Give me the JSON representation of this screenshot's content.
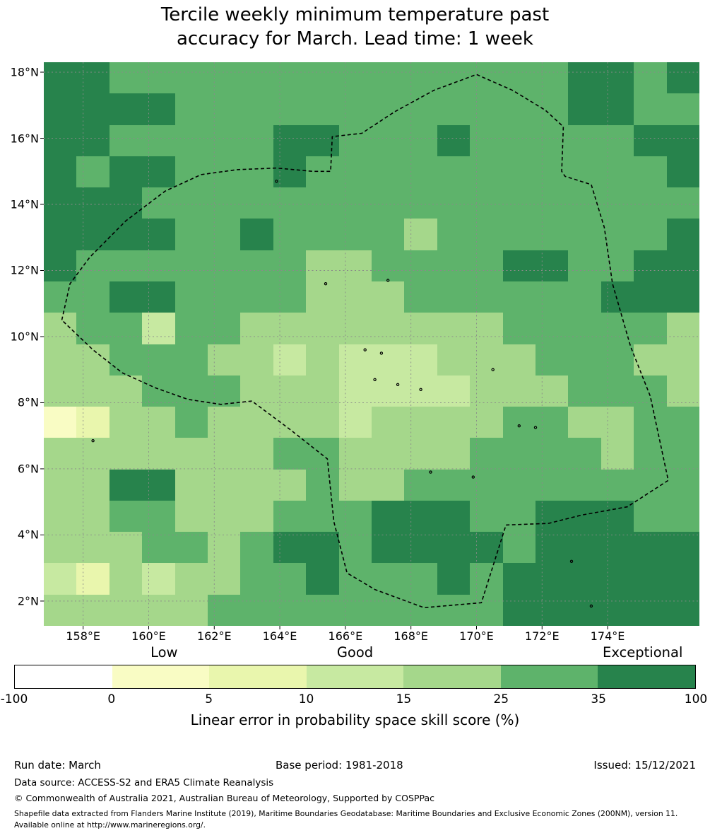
{
  "title": {
    "line1": "Tercile weekly minimum temperature past",
    "line2": "accuracy for March. Lead time: 1 week"
  },
  "chart_data": {
    "type": "heatmap",
    "title": "Tercile weekly minimum temperature past accuracy for March. Lead time: 1 week",
    "x_ticks": [
      "158°E",
      "160°E",
      "162°E",
      "164°E",
      "166°E",
      "168°E",
      "170°E",
      "172°E",
      "174°E"
    ],
    "lon_ticks": [
      158,
      160,
      162,
      164,
      166,
      168,
      170,
      172,
      174
    ],
    "y_ticks": [
      "18°N",
      "16°N",
      "14°N",
      "12°N",
      "10°N",
      "8°N",
      "6°N",
      "4°N",
      "2°N"
    ],
    "lat_ticks": [
      18,
      16,
      14,
      12,
      10,
      8,
      6,
      4,
      2
    ],
    "extent": {
      "lon_min": 156.8,
      "lon_max": 176.8,
      "lat_min": 1.25,
      "lat_max": 18.3
    },
    "grid_on": true,
    "grid": [
      [
        6,
        6,
        5,
        5,
        5,
        5,
        5,
        5,
        5,
        5,
        5,
        5,
        5,
        5,
        5,
        5,
        6,
        6,
        5,
        6
      ],
      [
        6,
        6,
        6,
        6,
        5,
        5,
        5,
        5,
        5,
        5,
        5,
        5,
        5,
        5,
        5,
        5,
        6,
        6,
        5,
        5
      ],
      [
        6,
        6,
        5,
        5,
        5,
        5,
        5,
        6,
        6,
        5,
        5,
        5,
        6,
        5,
        5,
        5,
        5,
        5,
        6,
        6
      ],
      [
        6,
        5,
        6,
        6,
        5,
        5,
        5,
        6,
        5,
        5,
        5,
        5,
        5,
        5,
        5,
        5,
        5,
        5,
        5,
        6
      ],
      [
        6,
        6,
        6,
        5,
        5,
        5,
        5,
        5,
        5,
        5,
        5,
        5,
        5,
        5,
        5,
        5,
        5,
        5,
        5,
        5
      ],
      [
        6,
        6,
        6,
        6,
        5,
        5,
        6,
        5,
        5,
        5,
        5,
        4,
        5,
        5,
        5,
        5,
        5,
        5,
        5,
        6
      ],
      [
        6,
        5,
        5,
        5,
        5,
        5,
        5,
        5,
        4,
        4,
        5,
        5,
        5,
        5,
        6,
        6,
        5,
        5,
        6,
        6
      ],
      [
        5,
        5,
        6,
        6,
        5,
        5,
        5,
        5,
        4,
        4,
        4,
        5,
        5,
        5,
        5,
        5,
        5,
        6,
        6,
        6
      ],
      [
        4,
        5,
        5,
        3,
        5,
        5,
        4,
        4,
        4,
        4,
        4,
        4,
        4,
        4,
        5,
        5,
        5,
        5,
        5,
        4
      ],
      [
        4,
        4,
        5,
        5,
        5,
        4,
        4,
        3,
        4,
        3,
        3,
        3,
        4,
        4,
        4,
        5,
        5,
        5,
        4,
        4
      ],
      [
        4,
        4,
        4,
        5,
        5,
        5,
        4,
        4,
        4,
        3,
        3,
        3,
        3,
        4,
        4,
        4,
        5,
        5,
        5,
        4
      ],
      [
        1,
        2,
        4,
        4,
        5,
        4,
        4,
        4,
        4,
        3,
        4,
        4,
        4,
        4,
        5,
        5,
        4,
        4,
        5,
        5
      ],
      [
        4,
        4,
        4,
        4,
        4,
        4,
        4,
        5,
        5,
        4,
        4,
        4,
        4,
        5,
        5,
        5,
        5,
        4,
        5,
        5
      ],
      [
        4,
        4,
        6,
        6,
        4,
        4,
        4,
        4,
        5,
        4,
        4,
        5,
        5,
        5,
        5,
        5,
        5,
        5,
        5,
        5
      ],
      [
        4,
        4,
        5,
        5,
        4,
        4,
        4,
        5,
        5,
        5,
        6,
        6,
        6,
        5,
        5,
        6,
        6,
        6,
        5,
        5
      ],
      [
        4,
        4,
        4,
        5,
        5,
        4,
        5,
        6,
        6,
        5,
        6,
        6,
        6,
        6,
        5,
        6,
        6,
        6,
        6,
        6
      ],
      [
        3,
        2,
        4,
        3,
        4,
        4,
        5,
        5,
        6,
        5,
        5,
        5,
        6,
        5,
        6,
        6,
        6,
        6,
        6,
        6
      ],
      [
        4,
        4,
        4,
        4,
        4,
        5,
        5,
        5,
        5,
        5,
        5,
        5,
        5,
        5,
        6,
        6,
        6,
        6,
        6,
        6
      ]
    ],
    "boundary": [
      [
        157.35,
        10.5
      ],
      [
        157.6,
        11.6
      ],
      [
        158.2,
        12.4
      ],
      [
        159.3,
        13.5
      ],
      [
        160.5,
        14.4
      ],
      [
        161.6,
        14.9
      ],
      [
        162.7,
        15.05
      ],
      [
        163.9,
        15.1
      ],
      [
        165.0,
        15.0
      ],
      [
        165.55,
        15.0
      ],
      [
        165.6,
        16.05
      ],
      [
        166.5,
        16.15
      ],
      [
        167.5,
        16.8
      ],
      [
        168.7,
        17.45
      ],
      [
        170.0,
        17.93
      ],
      [
        171.1,
        17.45
      ],
      [
        172.1,
        16.85
      ],
      [
        172.65,
        16.35
      ],
      [
        172.6,
        15.0
      ],
      [
        172.7,
        14.85
      ],
      [
        173.5,
        14.6
      ],
      [
        173.9,
        13.3
      ],
      [
        174.15,
        11.6
      ],
      [
        174.7,
        9.7
      ],
      [
        175.3,
        8.2
      ],
      [
        175.85,
        5.65
      ],
      [
        174.6,
        4.85
      ],
      [
        173.2,
        4.6
      ],
      [
        172.2,
        4.35
      ],
      [
        170.9,
        4.3
      ],
      [
        170.15,
        1.95
      ],
      [
        168.4,
        1.8
      ],
      [
        166.9,
        2.35
      ],
      [
        166.05,
        2.85
      ],
      [
        165.65,
        4.4
      ],
      [
        165.45,
        6.3
      ],
      [
        164.3,
        7.2
      ],
      [
        163.15,
        8.05
      ],
      [
        162.2,
        7.95
      ],
      [
        161.2,
        8.1
      ],
      [
        160.2,
        8.45
      ],
      [
        159.2,
        8.9
      ],
      [
        158.3,
        9.6
      ],
      [
        157.35,
        10.5
      ]
    ],
    "islands": [
      [
        158.3,
        6.85
      ],
      [
        166.9,
        8.7
      ],
      [
        167.6,
        8.55
      ],
      [
        168.3,
        8.4
      ],
      [
        166.6,
        9.6
      ],
      [
        167.1,
        9.5
      ],
      [
        170.5,
        9.0
      ],
      [
        171.3,
        7.3
      ],
      [
        171.8,
        7.25
      ],
      [
        168.6,
        5.9
      ],
      [
        169.9,
        5.75
      ],
      [
        172.9,
        3.2
      ],
      [
        173.5,
        1.85
      ],
      [
        163.9,
        14.7
      ],
      [
        167.3,
        11.7
      ],
      [
        165.4,
        11.6
      ]
    ],
    "colorbar": {
      "bounds": [
        "-100",
        "0",
        "5",
        "10",
        "15",
        "25",
        "35",
        "100"
      ],
      "colors": [
        "#ffffff",
        "#f9fcc4",
        "#e9f6ad",
        "#c7e9a1",
        "#a5d78b",
        "#5eb36b",
        "#27834c"
      ],
      "qualitative_labels": [
        "Low",
        "Good",
        "Exceptional"
      ],
      "qualitative_fractions": [
        0.22,
        0.5,
        0.922
      ],
      "label": "Linear error in probability space skill score (%)"
    },
    "style": {
      "gridline_color": "#8a8a8a",
      "boundary_color": "#000000"
    }
  },
  "footer": {
    "run_date": "Run date: March",
    "base_period": "Base period: 1981-2018",
    "issued": "Issued: 15/12/2021",
    "data_source": "Data source: ACCESS-S2 and ERA5 Climate Reanalysis",
    "copyright": "© Commonwealth of Australia 2021, Australian Bureau of Meteorology, Supported by COSPPac",
    "shapefile_note": "Shapefile data extracted from Flanders Marine Institute (2019), Maritime Boundaries Geodatabase: Maritime Boundaries and Exclusive Economic Zones (200NM), version 11. Available online at http://www.marineregions.org/."
  }
}
